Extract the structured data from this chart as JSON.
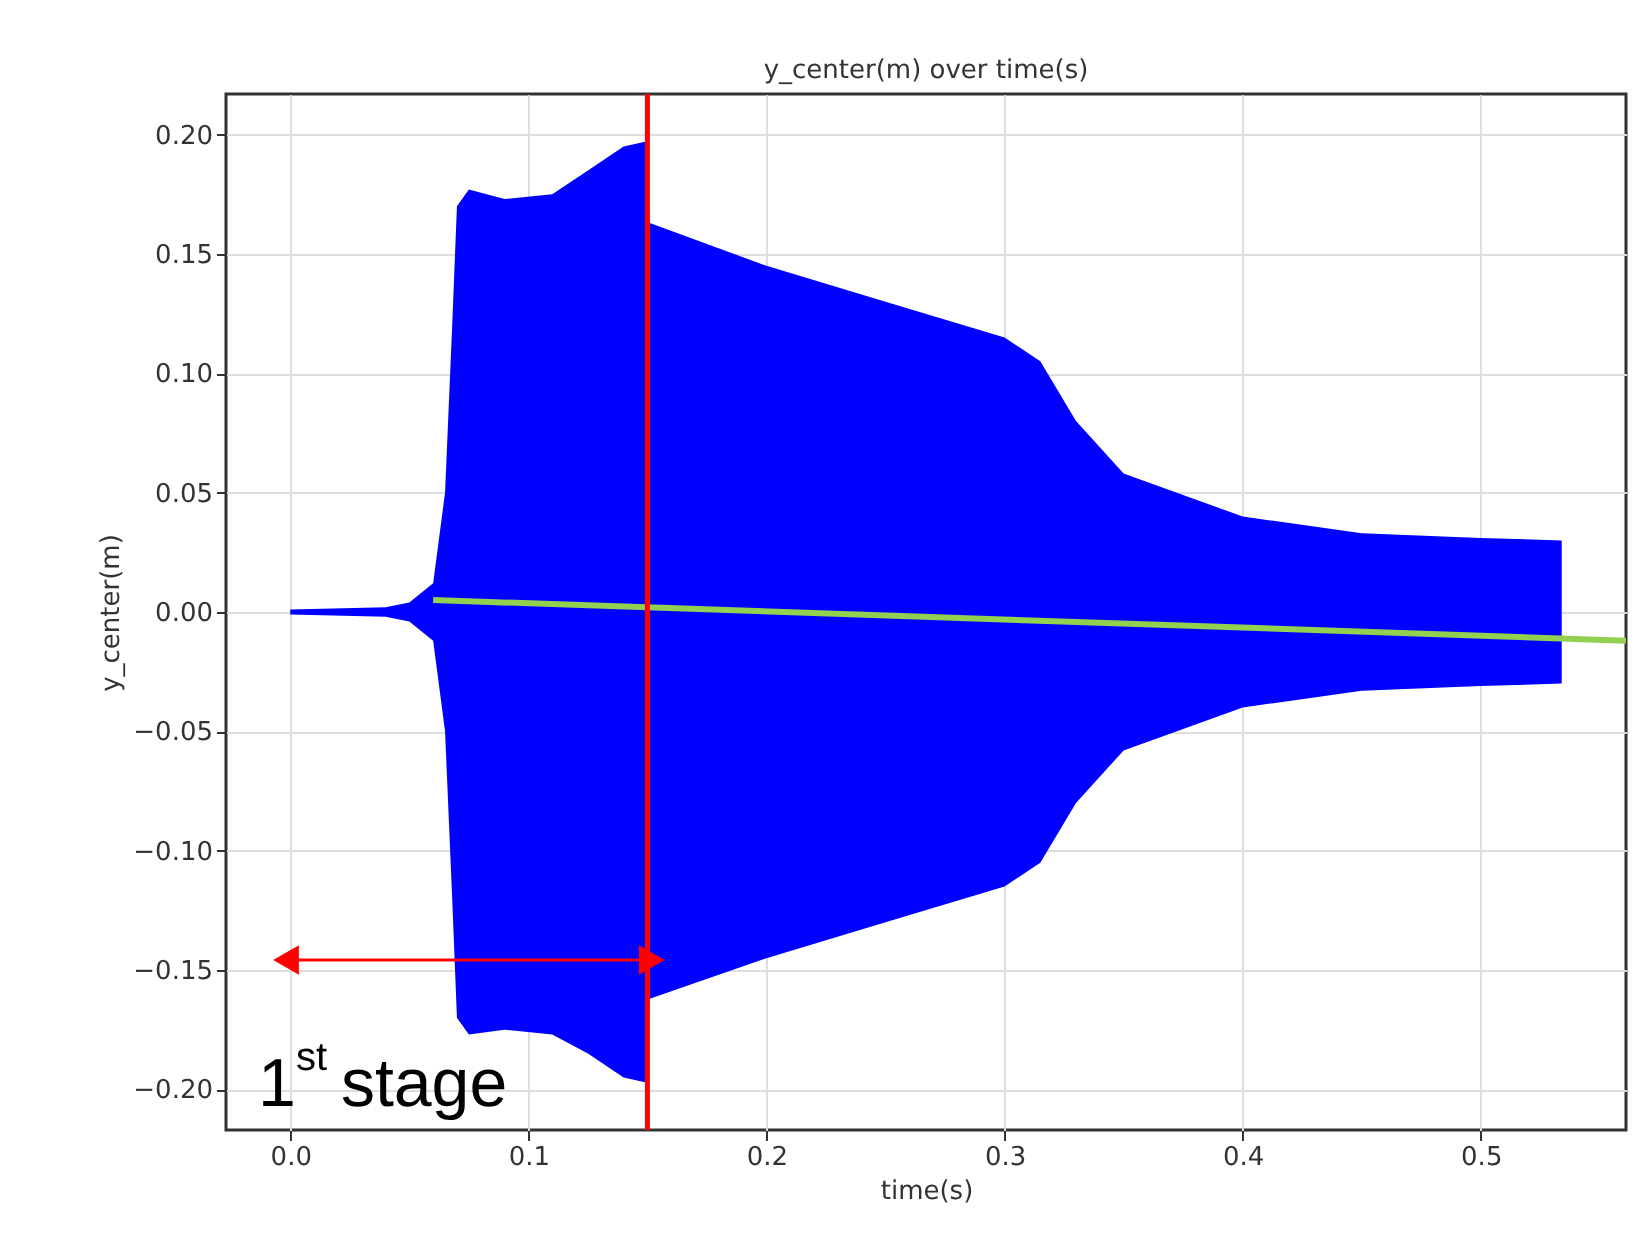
{
  "chart_data": {
    "type": "area",
    "title": "y_center(m) over time(s)",
    "xlabel": "time(s)",
    "ylabel": "y_center(m)",
    "xlim": [
      -0.027,
      0.561
    ],
    "xticks": [
      {
        "value": 0,
        "label": "0.0"
      },
      0.1,
      0.2,
      0.3,
      0.4,
      0.5
    ],
    "ylim": [
      -0.217,
      0.217
    ],
    "yticks": [
      {
        "value": -0.2,
        "label": "−0.20"
      },
      {
        "value": -0.15,
        "label": "−0.15"
      },
      {
        "value": -0.1,
        "label": "−0.10"
      },
      {
        "value": -0.05,
        "label": "−0.05"
      },
      {
        "value": 0,
        "label": "0.00"
      },
      {
        "value": 0.05,
        "label": "0.05"
      },
      {
        "value": 0.1,
        "label": "0.10"
      },
      {
        "value": 0.15,
        "label": "0.15"
      },
      {
        "value": 0.2,
        "label": "0.20"
      }
    ],
    "grid": true,
    "x": [
      0,
      0.04,
      0.05,
      0.06,
      0.065,
      0.068,
      0.07,
      0.075,
      0.09,
      0.11,
      0.125,
      0.14,
      0.149,
      0.151,
      0.2,
      0.25,
      0.3,
      0.315,
      0.33,
      0.35,
      0.4,
      0.45,
      0.5,
      0.534
    ],
    "series": [
      {
        "type": "area",
        "color": "#0000ff",
        "values": [
          0.001,
          0.002,
          0.004,
          0.012,
          0.05,
          0.12,
          0.17,
          0.177,
          0.173,
          0.175,
          0.185,
          0.195,
          0.197,
          0.163,
          0.145,
          0.13,
          0.115,
          0.105,
          0.08,
          0.058,
          0.04,
          0.033,
          0.031,
          0.03
        ]
      },
      {
        "type": "area",
        "color": "#0000ff",
        "values": [
          -0.001,
          -0.002,
          -0.004,
          -0.012,
          -0.05,
          -0.12,
          -0.17,
          -0.177,
          -0.175,
          -0.177,
          -0.185,
          -0.195,
          -0.197,
          -0.162,
          -0.145,
          -0.13,
          -0.115,
          -0.105,
          -0.08,
          -0.058,
          -0.04,
          -0.033,
          -0.031,
          -0.03
        ]
      },
      {
        "type": "line",
        "color": "#92d050",
        "x": [
          0.06,
          0.561
        ],
        "values": [
          0.005,
          -0.012
        ]
      }
    ],
    "ref_lines": [
      {
        "axis": "x",
        "value": 0.15,
        "color": "#ff0000"
      }
    ],
    "annotations": [
      "1$^{st}$ stage"
    ]
  }
}
